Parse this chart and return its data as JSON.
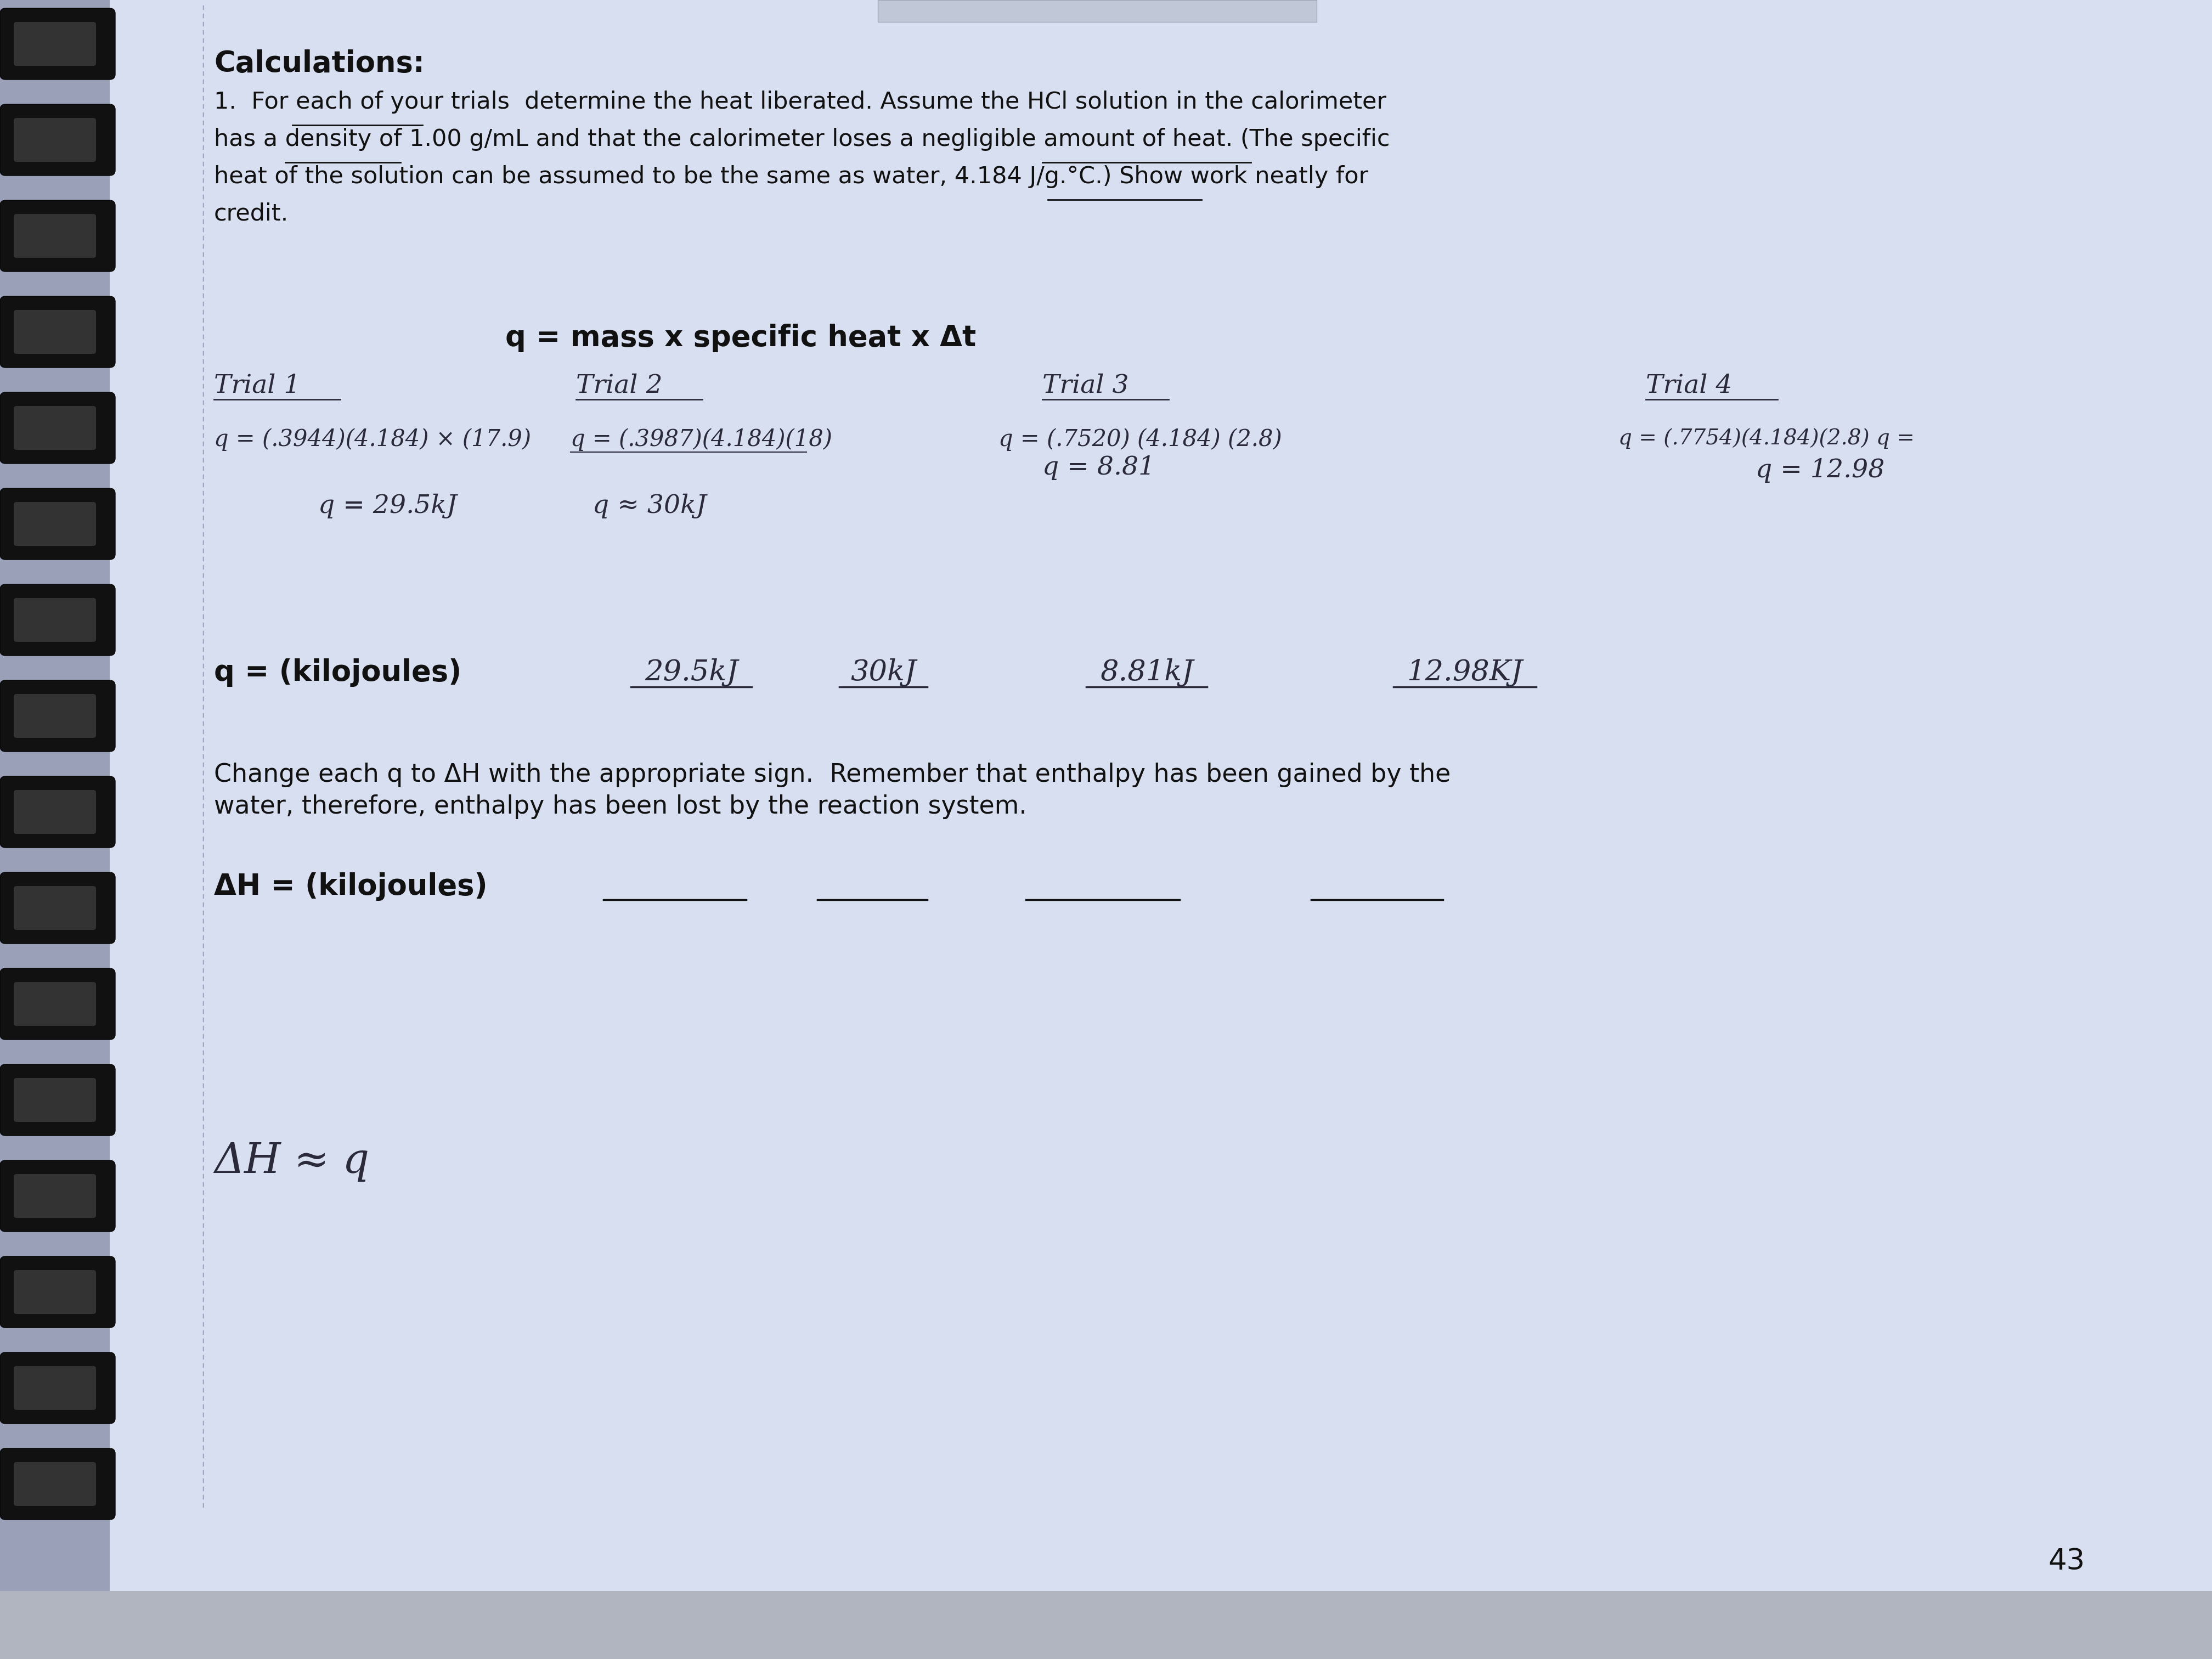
{
  "bg_color": "#c8cfe0",
  "page_color": "#d8dff0",
  "spiral_color": "#1a1a1a",
  "text_color": "#111111",
  "hand_color": "#2a2a3a",
  "title": "Calculations:",
  "para1_line1": "1.  For each of your trials  determine the heat liberated. Assume the HCl solution in the calorimeter",
  "para1_line2": "has a density of 1.00 g/mL and that the calorimeter loses a negligible amount of heat. (The specific",
  "para1_line3": "heat of the solution can be assumed to be the same as water, 4.184 J/g.°C.) Show work neatly for",
  "para1_line4": "credit.",
  "formula_header": "q = mass x specific heat x Δt",
  "trial1_label": "Trial 1",
  "trial2_label": "Trial 2",
  "trial3_label": "Trial 3",
  "trial4_label": "Trial 4",
  "t1_eq": "q = (.3944)(4.184) × (17.9)",
  "t2_eq": "q = (.3987)(4.184)(18)",
  "t3_eq": "q = (.7520) (4.184) (2.8)",
  "t4_eq": "q = (.7754)(4.184)(",
  "t1_res": "q = 29.5kJ",
  "t2_res": "q ≈ 30kJ",
  "t3_res": "q = 8.81",
  "t4_res": "q = 12.98",
  "q_label": "q = (kilojoules)",
  "q_val1": "29.5kJ",
  "q_val2": "30kJ",
  "q_val3": "8.81kJ",
  "q_val4": "12.98KJ",
  "change_text1": "Change each q to ΔH with the appropriate sign.  Remember that enthalpy has been gained by the",
  "change_text2": "water, therefore, enthalpy has been lost by the reaction system.",
  "dH_label": "ΔH = (kilojoules)",
  "bottom_note": "ΔH ≈ q",
  "page_number": "43"
}
